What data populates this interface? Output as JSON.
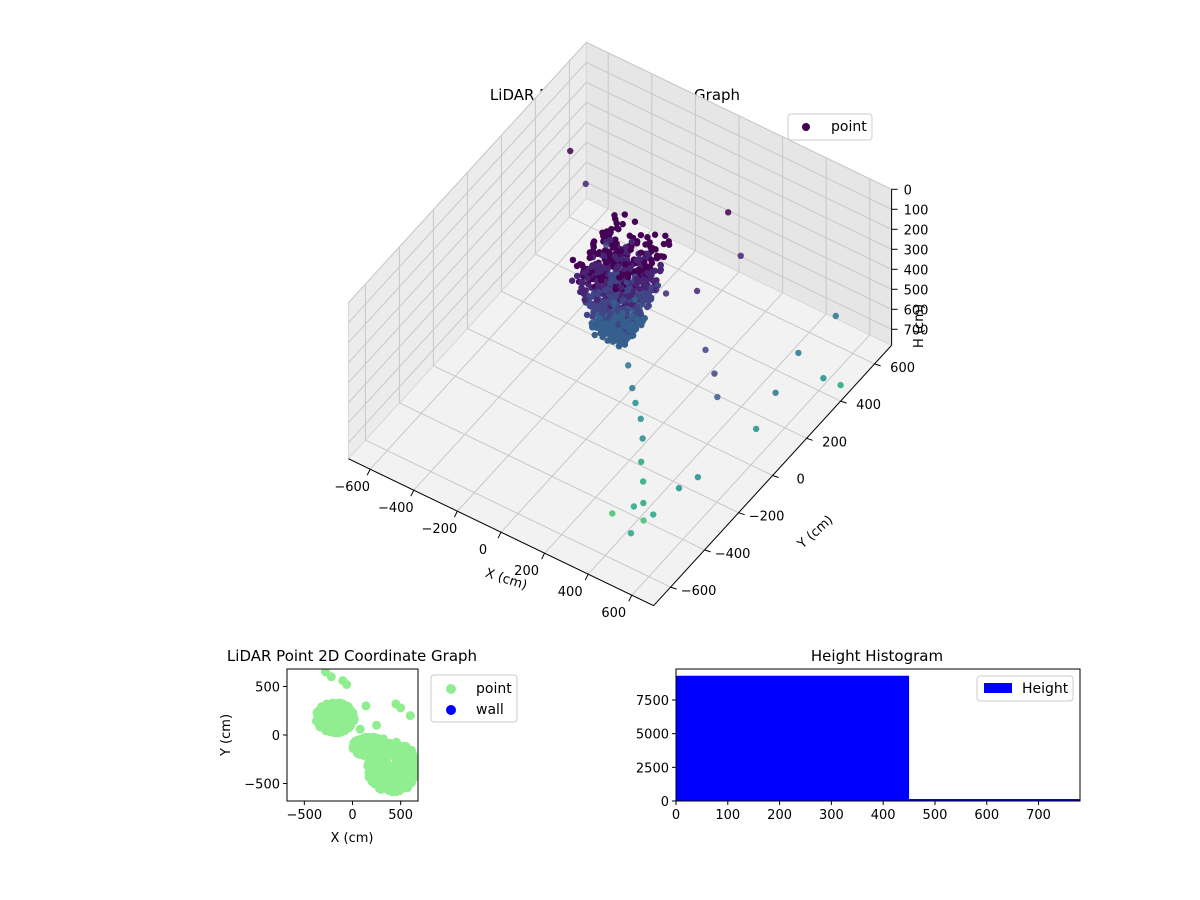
{
  "chart_data": [
    {
      "type": "scatter",
      "title": "LiDAR Point 3D Coordinate Graph",
      "xlabel": "X (cm)",
      "ylabel": "Y (cm)",
      "zlabel": "H (cm)",
      "xlim": [
        -700,
        700
      ],
      "ylim": [
        -700,
        700
      ],
      "zlim": [
        780,
        0
      ],
      "xticks": [
        "−600",
        "−400",
        "−200",
        "0",
        "200",
        "400",
        "600"
      ],
      "yticks": [
        "−600",
        "−400",
        "−200",
        "0",
        "200",
        "400",
        "600"
      ],
      "zticks": [
        "0",
        "100",
        "200",
        "300",
        "400",
        "500",
        "600",
        "700"
      ],
      "legend": {
        "placement": "top-right",
        "entries": [
          "point"
        ]
      },
      "grid": true,
      "colormap": "viridis",
      "series": [
        {
          "name": "point",
          "color": "#440154",
          "dense_cluster": {
            "x_range": [
              -150,
              150
            ],
            "y_range": [
              -150,
              150
            ],
            "h_range": [
              0,
              420
            ]
          },
          "points": [
            [
              -470,
              310,
              60
            ],
            [
              -360,
              260,
              120
            ],
            [
              -180,
              150,
              230
            ],
            [
              -120,
              100,
              300
            ],
            [
              -60,
              40,
              360
            ],
            [
              0,
              20,
              410
            ],
            [
              40,
              -30,
              440
            ],
            [
              100,
              -80,
              470
            ],
            [
              150,
              -120,
              520
            ],
            [
              180,
              -140,
              560
            ],
            [
              220,
              -160,
              600
            ],
            [
              260,
              -200,
              640
            ],
            [
              300,
              -260,
              680
            ],
            [
              340,
              -300,
              720
            ],
            [
              380,
              -350,
              760
            ],
            [
              420,
              -400,
              780
            ],
            [
              200,
              380,
              80
            ],
            [
              320,
              300,
              160
            ],
            [
              260,
              120,
              200
            ],
            [
              180,
              40,
              180
            ],
            [
              150,
              20,
              160
            ],
            [
              400,
              -10,
              300
            ],
            [
              480,
              -60,
              330
            ],
            [
              540,
              -120,
              360
            ],
            [
              600,
              280,
              480
            ],
            [
              620,
              120,
              520
            ],
            [
              640,
              -20,
              560
            ],
            [
              660,
              350,
              640
            ],
            [
              560,
              -260,
              620
            ],
            [
              520,
              -320,
              640
            ],
            [
              480,
              -420,
              700
            ],
            [
              440,
              -500,
              740
            ],
            [
              360,
              -380,
              760
            ],
            [
              300,
              -430,
              780
            ],
            [
              600,
              500,
              500
            ],
            [
              700,
              400,
              700
            ]
          ]
        }
      ]
    },
    {
      "type": "scatter",
      "title": "LiDAR Point 2D Coordinate Graph",
      "xlabel": "X (cm)",
      "ylabel": "Y (cm)",
      "xlim": [
        -680,
        680
      ],
      "ylim": [
        -680,
        680
      ],
      "xticks": [
        -500,
        0,
        500
      ],
      "yticks": [
        -500,
        0,
        500
      ],
      "legend": {
        "placement": "outside-right",
        "entries": [
          "point",
          "wall"
        ]
      },
      "grid": false,
      "series": [
        {
          "name": "point",
          "color": "#90ee90",
          "clusters": [
            {
              "cx": -180,
              "cy": 180,
              "rx": 200,
              "ry": 160
            },
            {
              "cx": 420,
              "cy": -330,
              "rx": 270,
              "ry": 260
            },
            {
              "cx": 180,
              "cy": -120,
              "rx": 180,
              "ry": 100
            }
          ],
          "points": [
            [
              -280,
              650
            ],
            [
              -220,
              600
            ],
            [
              -100,
              560
            ],
            [
              -60,
              520
            ],
            [
              140,
              300
            ],
            [
              450,
              320
            ],
            [
              500,
              280
            ],
            [
              600,
              200
            ],
            [
              250,
              100
            ],
            [
              80,
              60
            ],
            [
              320,
              -40
            ]
          ]
        },
        {
          "name": "wall",
          "color": "#0000ff",
          "points": []
        }
      ]
    },
    {
      "type": "bar",
      "title": "Height Histogram",
      "xlim": [
        0,
        780
      ],
      "ylim": [
        0,
        9800
      ],
      "xticks": [
        0,
        100,
        200,
        300,
        400,
        500,
        600,
        700
      ],
      "yticks": [
        0,
        2500,
        5000,
        7500
      ],
      "legend": {
        "placement": "top-right",
        "entries": [
          "Height"
        ]
      },
      "grid": false,
      "series": [
        {
          "name": "Height",
          "color": "#0000ff",
          "bins": [
            [
              0,
              450
            ],
            [
              450,
              780
            ]
          ],
          "values": [
            9300,
            40
          ]
        }
      ]
    }
  ]
}
